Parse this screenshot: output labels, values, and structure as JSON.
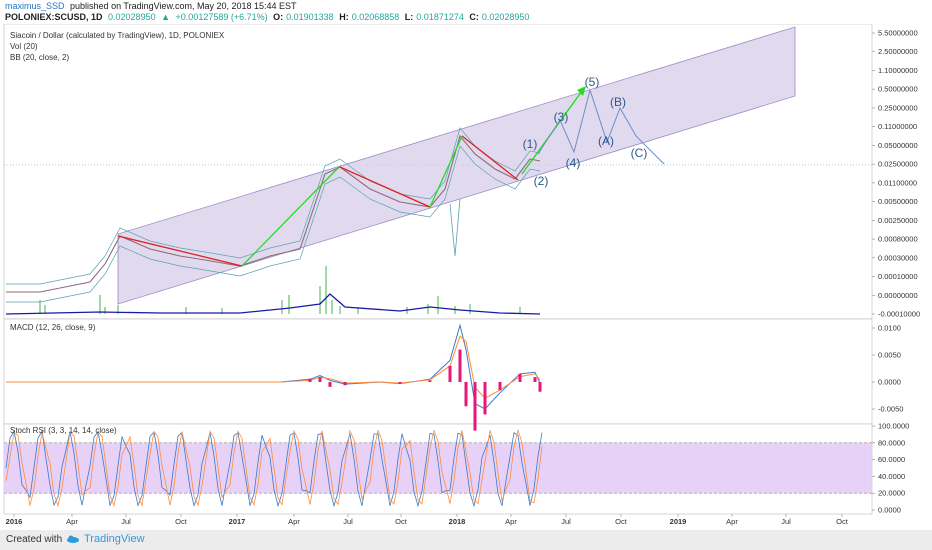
{
  "header": {
    "author": "maximus_SSD",
    "published": "published on TradingView.com, May 20, 2018 15:44 EST",
    "symbol": "POLONIEX:SCUSD, 1D",
    "last": "0.02028950",
    "change_arrow": "▲",
    "change": "+0.00127589 (+6.71%)",
    "o_label": "O:",
    "o": "0.01901338",
    "h_label": "H:",
    "h": "0.02068858",
    "l_label": "L:",
    "l": "0.01871274",
    "c_label": "C:",
    "c": "0.02028950"
  },
  "legend": {
    "title": "Siacoin / Dollar (calculated by TradingView), 1D, POLONIEX",
    "vol": "Vol (20)",
    "bb": "BB (20, close, 2)",
    "macd": "MACD (12, 26, close, 9)",
    "stoch": "Stoch RSI (3, 3, 14, 14, close)"
  },
  "footer": {
    "created_with": "Created with",
    "brand": "TradingView"
  },
  "colors": {
    "channel_fill": "#d7cdea",
    "channel_line": "#9b8bc4",
    "green_arrow": "#22dd22",
    "red_line": "#e02020",
    "projection": "#6a8ec8",
    "wave_label": "#2b5a8a",
    "stoch_fill": "#e4c9f6",
    "macd_line": "#3a79c8",
    "signal_line": "#ff8c3a",
    "hist": "#e8157a",
    "vol_line": "#1a1aa8"
  },
  "chart_data": [
    {
      "type": "line",
      "panel": "price",
      "y_scale": "log",
      "y_axis_ticks": [
        "5.50000000",
        "2.50000000",
        "1.10000000",
        "0.50000000",
        "0.25000000",
        "0.11000000",
        "0.05000000",
        "0.02500000",
        "0.01100000",
        "0.00500000",
        "0.00250000",
        "0.00080000",
        "0.00030000",
        "0.00010000",
        "0.00000000",
        "-0.00010000"
      ],
      "last_price_line": "0.02028950",
      "series": [
        {
          "x": [
            "2016-01",
            "2016-03",
            "2016-05",
            "2016-06",
            "2016-07",
            "2016-09",
            "2016-11",
            "2017-01",
            "2017-03",
            "2017-04",
            "2017-05",
            "2017-06",
            "2017-08",
            "2017-10",
            "2017-11",
            "2017-12",
            "2018-01",
            "2018-03",
            "2018-04",
            "2018-05"
          ],
          "values": [
            0.0001,
            0.00012,
            0.0003,
            0.0011,
            0.0006,
            0.00035,
            0.00018,
            0.0002,
            0.0003,
            0.0012,
            0.008,
            0.02,
            0.01,
            0.006,
            0.004,
            0.012,
            0.07,
            0.012,
            0.015,
            0.02029
          ]
        }
      ],
      "wave_labels": [
        "(1)",
        "(2)",
        "(3)",
        "(4)",
        "(5)",
        "(A)",
        "(B)",
        "(C)"
      ],
      "grid": false
    },
    {
      "type": "line",
      "panel": "macd",
      "y_axis_ticks": [
        "0.0100",
        "0.0050",
        "0.0000",
        "-0.0050"
      ],
      "series": [
        {
          "x": [
            "2017-04",
            "2017-07",
            "2017-10",
            "2017-12",
            "2018-01",
            "2018-02",
            "2018-03",
            "2018-04",
            "2018-05"
          ],
          "values": [
            0.0,
            0.001,
            0.0,
            0.002,
            0.01,
            -0.004,
            0.0,
            0.002,
            0.0
          ]
        },
        {
          "x": [
            "2017-04",
            "2017-07",
            "2017-10",
            "2017-12",
            "2018-01",
            "2018-02",
            "2018-03",
            "2018-04",
            "2018-05"
          ],
          "values": [
            0.0,
            0.0008,
            0.0,
            0.0015,
            0.008,
            -0.002,
            0.0,
            0.0015,
            0.0005
          ]
        }
      ]
    },
    {
      "type": "line",
      "panel": "stoch_rsi",
      "y_axis_ticks": [
        "100.0000",
        "80.0000",
        "60.0000",
        "40.0000",
        "20.0000",
        "0.0000"
      ],
      "band": [
        20,
        80
      ]
    }
  ],
  "x_axis_ticks": [
    "2016",
    "Apr",
    "Jul",
    "Oct",
    "2017",
    "Apr",
    "Jul",
    "Oct",
    "2018",
    "Apr",
    "Jul",
    "Oct",
    "2019",
    "Apr",
    "Jul",
    "Oct"
  ]
}
